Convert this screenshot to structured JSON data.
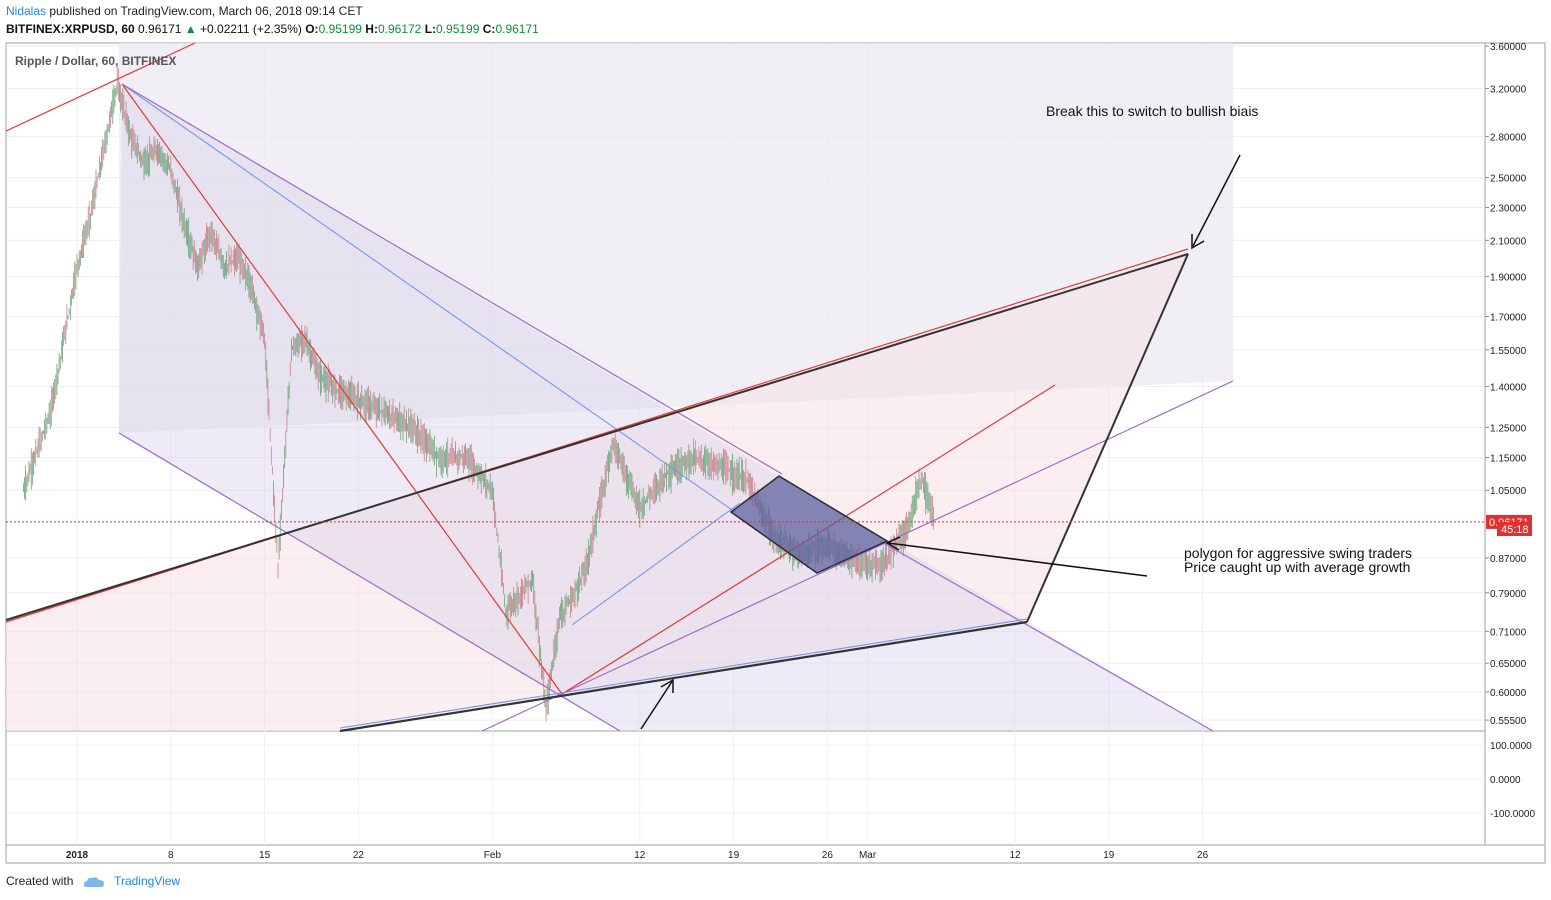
{
  "header": {
    "author": "Nidalas",
    "published": "published on TradingView.com, March 06, 2018 09:14 CET",
    "symbol": "BITFINEX:XRPUSD, 60",
    "last": "0.96171",
    "arrow": "▲",
    "change": "+0.02211 (+2.35%)",
    "o_label": "O:",
    "o_value": "0.95199",
    "h_label": "H:",
    "h_value": "0.96172",
    "l_label": "L:",
    "l_value": "0.95199",
    "c_label": "C:",
    "c_value": "0.96171"
  },
  "footer": {
    "created_with": "Created with",
    "brand": "TradingView"
  },
  "chart_data": {
    "type": "line",
    "title": "Ripple / Dollar, 60, BITFINEX",
    "x_axis_labels": [
      "2018",
      "8",
      "15",
      "22",
      "Feb",
      "12",
      "19",
      "26",
      "Mar",
      "12",
      "19",
      "26"
    ],
    "y_axis_scale": "log",
    "y_axis_labels": [
      "3.60000",
      "3.20000",
      "2.80000",
      "2.50000",
      "2.30000",
      "2.10000",
      "1.90000",
      "1.70000",
      "1.55000",
      "1.40000",
      "1.25000",
      "1.15000",
      "1.05000",
      "0.87000",
      "0.79000",
      "0.71000",
      "0.65000",
      "0.60000",
      "0.55500"
    ],
    "y_axis_values": [
      3.6,
      3.2,
      2.8,
      2.5,
      2.3,
      2.1,
      1.9,
      1.7,
      1.55,
      1.4,
      1.25,
      1.15,
      1.05,
      0.87,
      0.79,
      0.71,
      0.65,
      0.6,
      0.555
    ],
    "ylim": [
      0.53,
      3.8
    ],
    "last_price": {
      "value": 0.96171,
      "label": "0.96171",
      "countdown": "45:18",
      "color": "#e0302f"
    },
    "series": [
      {
        "x": [
          "2017-12-28",
          "2017-12-30",
          "2018-01-01",
          "2018-01-02",
          "2018-01-03",
          "2018-01-04",
          "2018-01-05",
          "2018-01-06",
          "2018-01-07",
          "2018-01-08",
          "2018-01-09",
          "2018-01-10",
          "2018-01-11",
          "2018-01-12",
          "2018-01-13",
          "2018-01-14",
          "2018-01-15",
          "2018-01-16",
          "2018-01-17",
          "2018-01-18",
          "2018-01-19",
          "2018-01-20",
          "2018-01-22",
          "2018-01-24",
          "2018-01-26",
          "2018-01-28",
          "2018-01-30",
          "2018-02-01",
          "2018-02-02",
          "2018-02-04",
          "2018-02-05",
          "2018-02-06",
          "2018-02-07",
          "2018-02-08",
          "2018-02-10",
          "2018-02-12",
          "2018-02-14",
          "2018-02-16",
          "2018-02-18",
          "2018-02-20",
          "2018-02-22",
          "2018-02-24",
          "2018-02-26",
          "2018-02-28",
          "2018-03-02",
          "2018-03-04",
          "2018-03-05",
          "2018-03-06"
        ],
        "values": [
          1.05,
          1.3,
          1.95,
          2.25,
          2.7,
          3.25,
          2.8,
          2.6,
          2.7,
          2.55,
          2.2,
          1.95,
          2.15,
          1.95,
          2.0,
          1.85,
          1.6,
          0.85,
          1.55,
          1.6,
          1.45,
          1.4,
          1.35,
          1.3,
          1.25,
          1.15,
          1.15,
          1.05,
          0.75,
          0.82,
          0.57,
          0.74,
          0.78,
          0.85,
          1.2,
          1.0,
          1.1,
          1.15,
          1.12,
          1.08,
          0.92,
          0.88,
          0.9,
          0.86,
          0.85,
          0.95,
          1.09,
          0.96171
        ]
      }
    ],
    "annotations": [
      "Break this to switch to bullish biais",
      "polygon for aggressive swing traders",
      "Price caught up with average growth"
    ],
    "oscillator_axis_labels": [
      "100.0000",
      "0.0000",
      "-100.0000"
    ],
    "colors": {
      "candles": "#c8828a",
      "red_line": "#e53935",
      "purple_line": "#9c6cc9",
      "blue_line": "#6f8fe8",
      "polygon_fill": "#5a5f9e",
      "dark_line": "#222222"
    }
  }
}
